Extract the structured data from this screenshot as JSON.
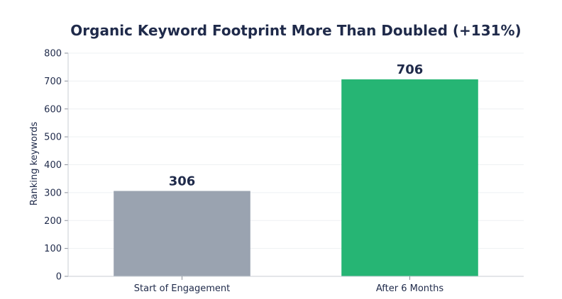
{
  "chart_data": {
    "type": "bar",
    "title": "Organic Keyword Footprint More Than Doubled (+131%)",
    "xlabel": "",
    "ylabel": "Ranking keywords",
    "categories": [
      "Start of Engagement",
      "After 6 Months"
    ],
    "values": [
      306,
      706
    ],
    "data_labels": [
      "306",
      "706"
    ],
    "colors": [
      "#9aa3b0",
      "#26b574"
    ],
    "ylim": [
      0,
      800
    ],
    "yticks": [
      0,
      100,
      200,
      300,
      400,
      500,
      600,
      700,
      800
    ],
    "grid": true,
    "legend": "none"
  }
}
